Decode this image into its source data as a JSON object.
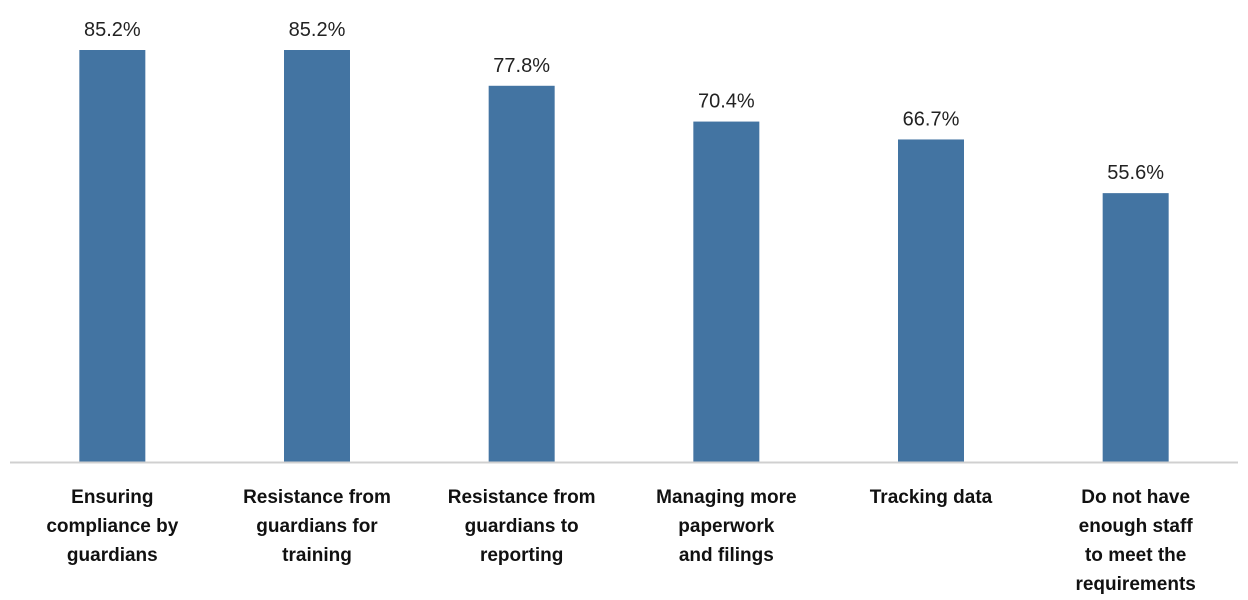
{
  "chart_data": {
    "type": "bar",
    "categories": [
      [
        "Ensuring",
        "compliance by",
        "guardians"
      ],
      [
        "Resistance from",
        "guardians for",
        "training"
      ],
      [
        "Resistance from",
        "guardians to",
        "reporting"
      ],
      [
        "Managing more",
        "paperwork",
        "and filings"
      ],
      [
        "Tracking data"
      ],
      [
        "Do not have",
        "enough staff",
        "to meet the",
        "requirements"
      ]
    ],
    "values": [
      85.2,
      85.2,
      77.8,
      70.4,
      66.7,
      55.6
    ],
    "value_labels": [
      "85.2%",
      "85.2%",
      "77.8%",
      "70.4%",
      "66.7%",
      "55.6%"
    ],
    "ylim": [
      0,
      100
    ],
    "bar_color": "#4374A2",
    "axis_color": "#D0D0D0",
    "grid": false
  }
}
